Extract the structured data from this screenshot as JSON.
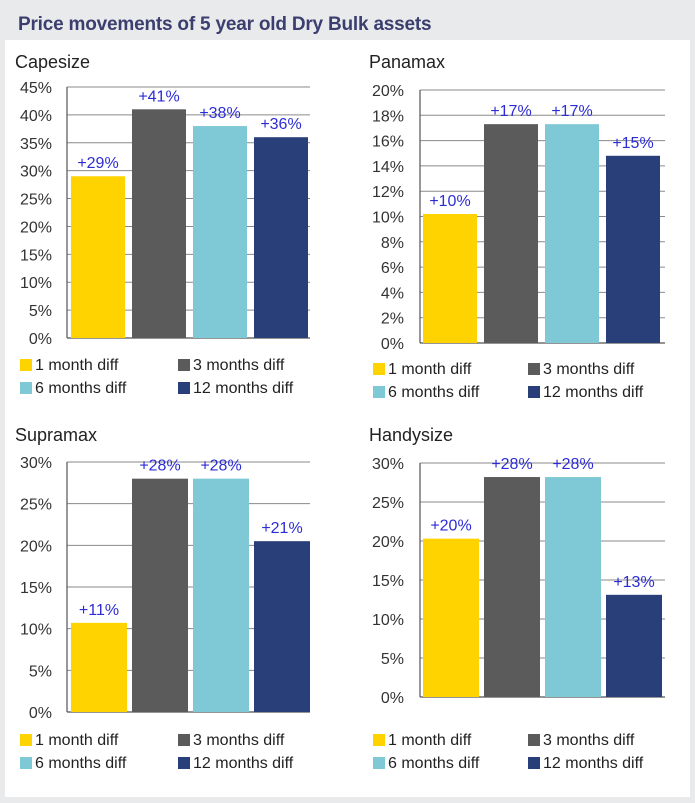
{
  "title": "Price movements of 5 year old Dry Bulk assets",
  "chart_data": [
    {
      "type": "bar",
      "title": "Capesize",
      "categories": [
        "1 month diff",
        "3 months diff",
        "6 months diff",
        "12 months diff"
      ],
      "values": [
        29,
        41,
        38,
        36
      ],
      "data_labels": [
        "+29%",
        "+41%",
        "+38%",
        "+36%"
      ],
      "ylim": [
        0,
        45
      ],
      "ystep": 5,
      "ytick_labels": [
        "0%",
        "5%",
        "10%",
        "15%",
        "20%",
        "25%",
        "30%",
        "35%",
        "40%",
        "45%"
      ],
      "grid": true,
      "legend": "bottom"
    },
    {
      "type": "bar",
      "title": "Panamax",
      "categories": [
        "1 month diff",
        "3 months diff",
        "6 months diff",
        "12 months diff"
      ],
      "values": [
        10.2,
        17.3,
        17.3,
        14.8
      ],
      "data_labels": [
        "+10%",
        "+17%",
        "+17%",
        "+15%"
      ],
      "ylim": [
        0,
        20
      ],
      "ystep": 2,
      "ytick_labels": [
        "0%",
        "2%",
        "4%",
        "6%",
        "8%",
        "10%",
        "12%",
        "14%",
        "16%",
        "18%",
        "20%"
      ],
      "grid": true,
      "legend": "bottom"
    },
    {
      "type": "bar",
      "title": "Supramax",
      "categories": [
        "1 month diff",
        "3 months diff",
        "6 months diff",
        "12 months diff"
      ],
      "values": [
        10.7,
        28,
        28,
        20.5
      ],
      "data_labels": [
        "+11%",
        "+28%",
        "+28%",
        "+21%"
      ],
      "ylim": [
        0,
        30
      ],
      "ystep": 5,
      "ytick_labels": [
        "0%",
        "5%",
        "10%",
        "15%",
        "20%",
        "25%",
        "30%"
      ],
      "grid": true,
      "legend": "bottom"
    },
    {
      "type": "bar",
      "title": "Handysize",
      "categories": [
        "1 month diff",
        "3 months diff",
        "6 months diff",
        "12 months diff"
      ],
      "values": [
        20.3,
        28.2,
        28.2,
        13.1
      ],
      "data_labels": [
        "+20%",
        "+28%",
        "+28%",
        "+13%"
      ],
      "ylim": [
        0,
        30
      ],
      "ystep": 5,
      "ytick_labels": [
        "0%",
        "5%",
        "10%",
        "15%",
        "20%",
        "25%",
        "30%"
      ],
      "grid": true,
      "legend": "bottom"
    }
  ],
  "series_colors": [
    "#ffd300",
    "#5b5b5b",
    "#7fc9d6",
    "#293f7a"
  ],
  "label_color": "#2c2cd6"
}
